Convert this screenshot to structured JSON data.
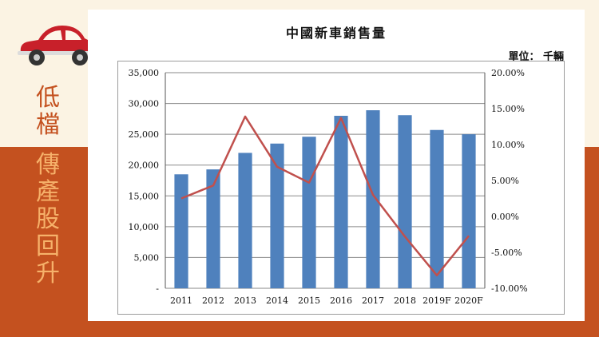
{
  "title": "中國新車銷售量",
  "unit_label": "單位： 千輛",
  "side_text_1": [
    "低",
    "檔"
  ],
  "side_text_2": [
    "傳",
    "產",
    "股",
    "回",
    "升"
  ],
  "colors": {
    "background": "#fbf3e3",
    "band": "#c4511f",
    "bar": "#4f81bd",
    "line": "#c0504d",
    "side_text_1": "#c4511f",
    "side_text_2": "#f6b16a",
    "car": "#c8202a"
  },
  "icons": {
    "car": "red-car-icon"
  },
  "chart_data": {
    "type": "bar",
    "categories": [
      "2011",
      "2012",
      "2013",
      "2014",
      "2015",
      "2016",
      "2017",
      "2018",
      "2019F",
      "2020F"
    ],
    "series": [
      {
        "type": "bar",
        "axis": "left",
        "values": [
          18500,
          19300,
          21980,
          23490,
          24600,
          28000,
          28900,
          28100,
          25700,
          25000
        ]
      },
      {
        "type": "line",
        "axis": "right",
        "values": [
          2.5,
          4.3,
          13.9,
          6.9,
          4.7,
          13.7,
          3.0,
          -2.8,
          -8.2,
          -2.7
        ]
      }
    ],
    "y_left": {
      "min": 0,
      "max": 35000,
      "ticks": [
        "-",
        "5,000",
        "10,000",
        "15,000",
        "20,000",
        "25,000",
        "30,000",
        "35,000"
      ]
    },
    "y_right": {
      "min": -10,
      "max": 20,
      "ticks": [
        "-10.00%",
        "-5.00%",
        "0.00%",
        "5.00%",
        "10.00%",
        "15.00%",
        "20.00%"
      ]
    },
    "grid": true,
    "legend": "none"
  }
}
